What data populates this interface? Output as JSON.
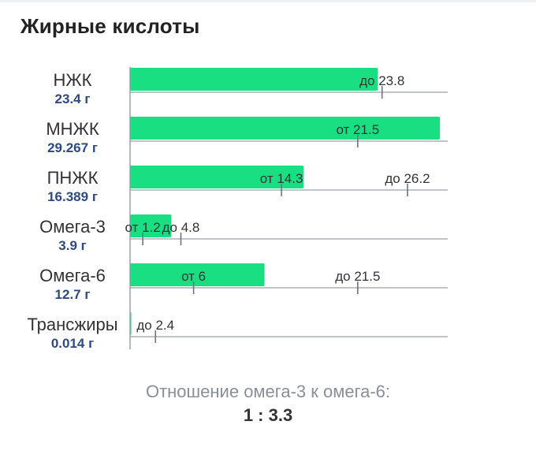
{
  "title": "Жирные кислоты",
  "ratio": {
    "label": "Отношение омега-3 к омега-6:",
    "value": "1 : 3.3"
  },
  "colors": {
    "bar": "#1adf82",
    "value_text": "#2d4a80",
    "name_text": "#333333",
    "axis": "#9aa0a6",
    "tick": "#6f757c"
  },
  "chart_data": {
    "type": "bar",
    "orientation": "horizontal",
    "title": "Жирные кислоты",
    "unit": "г",
    "xlim": [
      0,
      30
    ],
    "grid": false,
    "rows": [
      {
        "name": "НЖК",
        "value": 23.4,
        "value_label": "23.4 г",
        "markers": [
          {
            "type": "max",
            "value": 23.8,
            "label": "до 23.8"
          }
        ]
      },
      {
        "name": "МНЖК",
        "value": 29.267,
        "value_label": "29.267 г",
        "markers": [
          {
            "type": "min",
            "value": 21.5,
            "label": "от 21.5"
          }
        ]
      },
      {
        "name": "ПНЖК",
        "value": 16.389,
        "value_label": "16.389 г",
        "markers": [
          {
            "type": "min",
            "value": 14.3,
            "label": "от 14.3"
          },
          {
            "type": "max",
            "value": 26.2,
            "label": "до 26.2"
          }
        ]
      },
      {
        "name": "Омега-3",
        "value": 3.9,
        "value_label": "3.9 г",
        "markers": [
          {
            "type": "min",
            "value": 1.2,
            "label": "от 1.2"
          },
          {
            "type": "max",
            "value": 4.8,
            "label": "до 4.8"
          }
        ]
      },
      {
        "name": "Омега-6",
        "value": 12.7,
        "value_label": "12.7 г",
        "markers": [
          {
            "type": "min",
            "value": 6,
            "label": "от 6"
          },
          {
            "type": "max",
            "value": 21.5,
            "label": "до 21.5"
          }
        ]
      },
      {
        "name": "Трансжиры",
        "value": 0.014,
        "value_label": "0.014 г",
        "markers": [
          {
            "type": "max",
            "value": 2.4,
            "label": "до 2.4"
          }
        ]
      }
    ]
  }
}
